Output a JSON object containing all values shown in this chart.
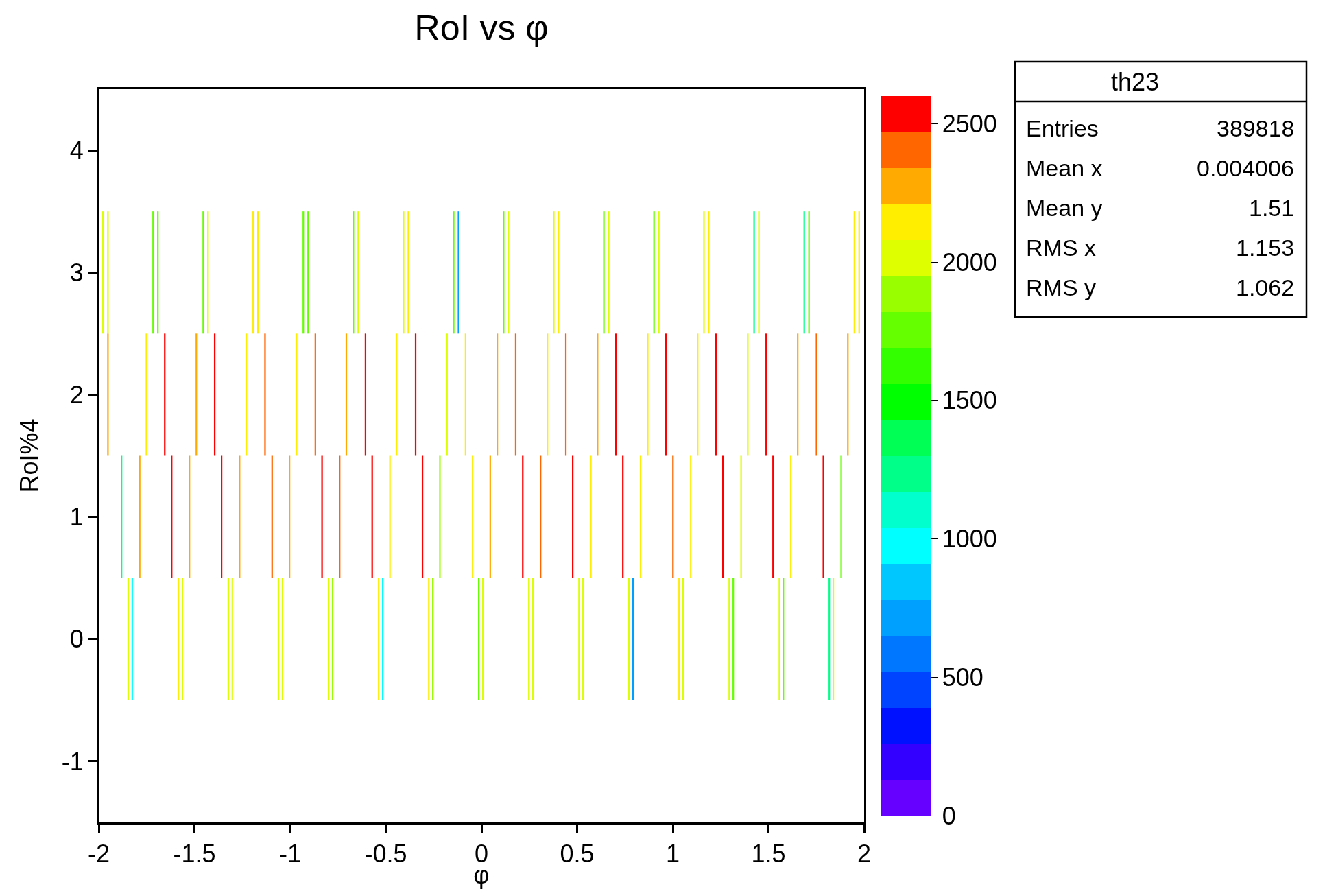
{
  "chart_data": {
    "type": "heatmap",
    "title": "RoI vs φ",
    "xlabel": "φ",
    "ylabel": "RoI%4",
    "x": [
      -1.986,
      -1.978,
      -1.97,
      -1.96,
      -1.952,
      -1.944,
      -1.889,
      -1.881,
      -1.873,
      -1.854,
      -1.846,
      -1.838,
      -1.833,
      -1.825,
      -1.817,
      -1.794,
      -1.786,
      -1.778,
      -1.759,
      -1.751,
      -1.743,
      -1.724,
      -1.716,
      -1.708,
      -1.699,
      -1.691,
      -1.683,
      -1.663,
      -1.655,
      -1.647,
      -1.627,
      -1.619,
      -1.611,
      -1.592,
      -1.584,
      -1.576,
      -1.571,
      -1.563,
      -1.555,
      -1.534,
      -1.526,
      -1.518,
      -1.498,
      -1.49,
      -1.482,
      -1.462,
      -1.454,
      -1.446,
      -1.437,
      -1.429,
      -1.421,
      -1.402,
      -1.394,
      -1.386,
      -1.366,
      -1.358,
      -1.35,
      -1.331,
      -1.323,
      -1.315,
      -1.31,
      -1.302,
      -1.294,
      -1.272,
      -1.264,
      -1.256,
      -1.236,
      -1.228,
      -1.22,
      -1.201,
      -1.193,
      -1.185,
      -1.176,
      -1.168,
      -1.16,
      -1.139,
      -1.131,
      -1.123,
      -1.102,
      -1.094,
      -1.086,
      -1.069,
      -1.061,
      -1.053,
      -1.048,
      -1.04,
      -1.032,
      -1.011,
      -1.003,
      -0.995,
      -0.974,
      -0.966,
      -0.958,
      -0.939,
      -0.931,
      -0.923,
      -0.914,
      -0.906,
      -0.898,
      -0.876,
      -0.868,
      -0.86,
      -0.841,
      -0.833,
      -0.825,
      -0.807,
      -0.799,
      -0.791,
      -0.786,
      -0.778,
      -0.77,
      -0.749,
      -0.741,
      -0.733,
      -0.714,
      -0.706,
      -0.698,
      -0.677,
      -0.669,
      -0.661,
      -0.652,
      -0.644,
      -0.636,
      -0.614,
      -0.606,
      -0.598,
      -0.579,
      -0.571,
      -0.563,
      -0.545,
      -0.537,
      -0.529,
      -0.524,
      -0.516,
      -0.508,
      -0.486,
      -0.478,
      -0.47,
      -0.451,
      -0.443,
      -0.435,
      -0.415,
      -0.407,
      -0.399,
      -0.39,
      -0.382,
      -0.374,
      -0.352,
      -0.344,
      -0.336,
      -0.316,
      -0.308,
      -0.3,
      -0.283,
      -0.275,
      -0.267,
      -0.262,
      -0.254,
      -0.246,
      -0.225,
      -0.217,
      -0.209,
      -0.188,
      -0.18,
      -0.172,
      -0.153,
      -0.145,
      -0.137,
      -0.128,
      -0.12,
      -0.112,
      -0.091,
      -0.083,
      -0.075,
      -0.054,
      -0.046,
      -0.038,
      -0.022,
      -0.014,
      -0.006,
      -0.001,
      0.007,
      0.015,
      0.038,
      0.046,
      0.054,
      0.075,
      0.083,
      0.091,
      0.108,
      0.116,
      0.124,
      0.133,
      0.141,
      0.149,
      0.171,
      0.179,
      0.187,
      0.208,
      0.216,
      0.224,
      0.24,
      0.248,
      0.256,
      0.261,
      0.269,
      0.277,
      0.301,
      0.309,
      0.317,
      0.337,
      0.345,
      0.353,
      0.37,
      0.378,
      0.386,
      0.395,
      0.403,
      0.411,
      0.433,
      0.441,
      0.449,
      0.469,
      0.477,
      0.485,
      0.502,
      0.51,
      0.518,
      0.523,
      0.531,
      0.539,
      0.564,
      0.572,
      0.58,
      0.599,
      0.607,
      0.615,
      0.632,
      0.64,
      0.648,
      0.657,
      0.665,
      0.673,
      0.695,
      0.703,
      0.711,
      0.731,
      0.739,
      0.747,
      0.763,
      0.771,
      0.779,
      0.784,
      0.792,
      0.8,
      0.824,
      0.832,
      0.84,
      0.861,
      0.869,
      0.877,
      0.894,
      0.902,
      0.91,
      0.919,
      0.927,
      0.935,
      0.956,
      0.964,
      0.972,
      0.993,
      1.001,
      1.009,
      1.025,
      1.033,
      1.041,
      1.046,
      1.054,
      1.062,
      1.086,
      1.094,
      1.102,
      1.122,
      1.13,
      1.138,
      1.155,
      1.163,
      1.171,
      1.18,
      1.188,
      1.196,
      1.218,
      1.226,
      1.234,
      1.254,
      1.262,
      1.27,
      1.287,
      1.295,
      1.303,
      1.308,
      1.316,
      1.324,
      1.349,
      1.357,
      1.365,
      1.384,
      1.392,
      1.4,
      1.417,
      1.425,
      1.433,
      1.442,
      1.45,
      1.458,
      1.48,
      1.488,
      1.496,
      1.516,
      1.524,
      1.532,
      1.549,
      1.557,
      1.565,
      1.57,
      1.578,
      1.586,
      1.609,
      1.617,
      1.625,
      1.645,
      1.653,
      1.661,
      1.679,
      1.687,
      1.695,
      1.704,
      1.712,
      1.72,
      1.743,
      1.751,
      1.759,
      1.779,
      1.787,
      1.795,
      1.81,
      1.818,
      1.826,
      1.831,
      1.839,
      1.847,
      1.872,
      1.88,
      1.888,
      1.907,
      1.915,
      1.923,
      1.941,
      1.949,
      1.957,
      1.966,
      1.974,
      1.982
    ],
    "y": [
      3,
      2,
      1,
      0
    ],
    "cells": [
      [
        null,
        2000,
        null,
        null,
        2000,
        null,
        null,
        null,
        null,
        null,
        null,
        null,
        null,
        null,
        null,
        null,
        null,
        null,
        null,
        null,
        null,
        null,
        1700,
        null,
        null,
        1700,
        null,
        null,
        null,
        null,
        null,
        null,
        null,
        null,
        null,
        null,
        null,
        null,
        null,
        null,
        null,
        null,
        null,
        null,
        null,
        null,
        1700,
        null,
        null,
        2000,
        null,
        null,
        null,
        null,
        null,
        null,
        null,
        null,
        null,
        null,
        null,
        null,
        null,
        null,
        null,
        null,
        null,
        null,
        null,
        null,
        2150,
        null,
        null,
        2150,
        null,
        null,
        null,
        null,
        null,
        null,
        null,
        null,
        null,
        null,
        null,
        null,
        null,
        null,
        null,
        null,
        null,
        null,
        null,
        null,
        1700,
        null,
        null,
        1700,
        null,
        null,
        null,
        null,
        null,
        null,
        null,
        null,
        null,
        null,
        null,
        null,
        null,
        null,
        null,
        null,
        null,
        null,
        null,
        null,
        1700,
        null,
        null,
        2000,
        null,
        null,
        null,
        null,
        null,
        null,
        null,
        null,
        null,
        null,
        null,
        null,
        null,
        null,
        null,
        null,
        null,
        null,
        null,
        null,
        2000,
        null,
        null,
        2150,
        null,
        null,
        null,
        null,
        null,
        null,
        null,
        null,
        null,
        null,
        null,
        null,
        null,
        null,
        null,
        null,
        null,
        null,
        null,
        null,
        1700,
        null,
        null,
        650,
        null,
        null,
        null,
        null,
        null,
        null,
        null,
        null,
        null,
        null,
        null,
        null,
        null,
        null,
        null,
        null,
        null,
        null,
        null,
        null,
        1700,
        null,
        null,
        2000,
        null,
        null,
        null,
        null,
        null,
        null,
        null,
        null,
        null,
        null,
        null,
        null,
        null,
        null,
        null,
        null,
        null,
        null,
        null,
        null,
        2000,
        null,
        null,
        2150,
        null,
        null,
        null,
        null,
        null,
        null,
        null,
        null,
        null,
        null,
        null,
        null,
        null,
        null,
        null,
        null,
        null,
        null,
        null,
        null,
        1700,
        null,
        null,
        2000,
        null,
        null,
        null,
        null,
        null,
        null,
        null,
        null,
        null,
        null,
        null,
        null,
        null,
        null,
        null,
        null,
        null,
        null,
        null,
        null,
        1700,
        null,
        null,
        2000,
        null,
        null,
        null,
        null,
        null,
        null,
        null,
        null,
        null,
        null,
        null,
        null,
        null,
        null,
        null,
        null,
        null,
        null,
        null,
        null,
        2000,
        null,
        null,
        2150,
        null,
        null,
        null,
        null,
        null,
        null,
        null,
        null,
        null,
        null,
        null,
        null,
        null,
        null,
        null,
        null,
        null,
        null,
        null,
        null,
        1200,
        null,
        null,
        2000,
        null,
        null,
        null,
        null,
        null,
        null,
        null,
        null,
        null,
        null,
        null,
        null,
        null,
        null,
        null,
        null,
        null,
        null,
        null,
        null,
        1200,
        null,
        null,
        1700,
        null,
        null,
        null,
        null,
        null,
        null,
        null,
        null,
        null,
        null,
        null,
        null,
        null,
        null,
        null,
        null,
        null,
        null,
        null,
        null,
        2150,
        null,
        null,
        2150,
        null
      ],
      [
        null,
        null,
        null,
        null,
        2300,
        null,
        null,
        null,
        null,
        null,
        null,
        null,
        null,
        null,
        null,
        null,
        null,
        null,
        null,
        2150,
        null,
        null,
        null,
        null,
        null,
        null,
        null,
        null,
        2550,
        null,
        null,
        null,
        null,
        null,
        null,
        null,
        null,
        null,
        null,
        null,
        null,
        null,
        null,
        2300,
        null,
        null,
        null,
        null,
        null,
        null,
        null,
        null,
        2550,
        null,
        null,
        null,
        null,
        null,
        null,
        null,
        null,
        null,
        null,
        null,
        null,
        null,
        null,
        2150,
        null,
        null,
        null,
        null,
        null,
        null,
        null,
        null,
        2400,
        null,
        null,
        null,
        null,
        null,
        null,
        null,
        null,
        null,
        null,
        null,
        null,
        null,
        null,
        2150,
        null,
        null,
        null,
        null,
        null,
        null,
        null,
        null,
        2400,
        null,
        null,
        null,
        null,
        null,
        null,
        null,
        null,
        null,
        null,
        null,
        null,
        null,
        null,
        2300,
        null,
        null,
        null,
        null,
        null,
        null,
        null,
        null,
        2550,
        null,
        null,
        null,
        null,
        null,
        null,
        null,
        null,
        null,
        null,
        null,
        null,
        null,
        null,
        2150,
        null,
        null,
        null,
        null,
        null,
        null,
        null,
        null,
        2550,
        null,
        null,
        null,
        null,
        null,
        null,
        null,
        null,
        null,
        null,
        null,
        null,
        null,
        null,
        2000,
        null,
        null,
        null,
        null,
        null,
        null,
        null,
        null,
        2150,
        null,
        null,
        null,
        null,
        null,
        null,
        null,
        null,
        null,
        null,
        null,
        null,
        null,
        null,
        2300,
        null,
        null,
        null,
        null,
        null,
        null,
        null,
        null,
        2400,
        null,
        null,
        null,
        null,
        null,
        null,
        null,
        null,
        null,
        null,
        null,
        null,
        null,
        null,
        2150,
        null,
        null,
        null,
        null,
        null,
        null,
        null,
        null,
        2400,
        null,
        null,
        null,
        null,
        null,
        null,
        null,
        null,
        null,
        null,
        null,
        null,
        null,
        null,
        2300,
        null,
        null,
        null,
        null,
        null,
        null,
        null,
        null,
        2550,
        null,
        null,
        null,
        null,
        null,
        null,
        null,
        null,
        null,
        null,
        null,
        null,
        null,
        null,
        2150,
        null,
        null,
        null,
        null,
        null,
        null,
        null,
        null,
        2550,
        null,
        null,
        null,
        null,
        null,
        null,
        null,
        null,
        null,
        null,
        null,
        null,
        null,
        null,
        2150,
        null,
        null,
        null,
        null,
        null,
        null,
        null,
        null,
        2550,
        null,
        null,
        null,
        null,
        null,
        null,
        null,
        null,
        null,
        null,
        null,
        null,
        null,
        null,
        2000,
        null,
        null,
        null,
        null,
        null,
        null,
        null,
        null,
        2550,
        null,
        null,
        null,
        null,
        null,
        null,
        null,
        null,
        null,
        null,
        null,
        null,
        null,
        null,
        2300,
        null,
        null,
        null,
        null,
        null,
        null,
        null,
        null,
        2400,
        null,
        null,
        null,
        null,
        null,
        null,
        null,
        null,
        null,
        null,
        null,
        null,
        null,
        null,
        2300,
        null,
        null,
        null,
        null,
        null,
        null,
        null
      ],
      [
        null,
        null,
        null,
        null,
        null,
        null,
        null,
        1200,
        null,
        null,
        null,
        null,
        null,
        null,
        null,
        null,
        2300,
        null,
        null,
        null,
        null,
        null,
        null,
        null,
        null,
        null,
        null,
        null,
        null,
        null,
        null,
        2550,
        null,
        null,
        null,
        null,
        null,
        null,
        null,
        null,
        2300,
        null,
        null,
        null,
        null,
        null,
        null,
        null,
        null,
        null,
        null,
        null,
        null,
        null,
        null,
        2550,
        null,
        null,
        null,
        null,
        null,
        null,
        null,
        null,
        2300,
        null,
        null,
        null,
        null,
        null,
        null,
        null,
        null,
        null,
        null,
        null,
        null,
        null,
        null,
        2400,
        null,
        null,
        null,
        null,
        null,
        null,
        null,
        null,
        2300,
        null,
        null,
        null,
        null,
        null,
        null,
        null,
        null,
        null,
        null,
        null,
        null,
        null,
        null,
        2550,
        null,
        null,
        null,
        null,
        null,
        null,
        null,
        null,
        2400,
        null,
        null,
        null,
        null,
        null,
        null,
        null,
        null,
        null,
        null,
        null,
        null,
        null,
        null,
        2550,
        null,
        null,
        null,
        null,
        null,
        null,
        null,
        null,
        2150,
        null,
        null,
        null,
        null,
        null,
        null,
        null,
        null,
        null,
        null,
        null,
        null,
        null,
        null,
        2550,
        null,
        null,
        null,
        null,
        null,
        null,
        null,
        null,
        1900,
        null,
        null,
        null,
        null,
        null,
        null,
        null,
        null,
        null,
        null,
        null,
        null,
        null,
        null,
        2150,
        null,
        null,
        null,
        null,
        null,
        null,
        null,
        null,
        2250,
        null,
        null,
        null,
        null,
        null,
        null,
        null,
        null,
        null,
        null,
        null,
        null,
        null,
        null,
        2550,
        null,
        null,
        null,
        null,
        null,
        null,
        null,
        null,
        2400,
        null,
        null,
        null,
        null,
        null,
        null,
        null,
        null,
        null,
        null,
        null,
        null,
        null,
        null,
        2550,
        null,
        null,
        null,
        null,
        null,
        null,
        null,
        null,
        2150,
        null,
        null,
        null,
        null,
        null,
        null,
        null,
        null,
        null,
        null,
        null,
        null,
        null,
        null,
        2550,
        null,
        null,
        null,
        null,
        null,
        null,
        null,
        null,
        2150,
        null,
        null,
        null,
        null,
        null,
        null,
        null,
        null,
        null,
        null,
        null,
        null,
        null,
        null,
        2400,
        null,
        null,
        null,
        null,
        null,
        null,
        null,
        null,
        2150,
        null,
        null,
        null,
        null,
        null,
        null,
        null,
        null,
        null,
        null,
        null,
        null,
        null,
        null,
        2550,
        null,
        null,
        null,
        null,
        null,
        null,
        null,
        null,
        2000,
        null,
        null,
        null,
        null,
        null,
        null,
        null,
        null,
        null,
        null,
        null,
        null,
        null,
        null,
        2550,
        null,
        null,
        null,
        null,
        null,
        null,
        null,
        null,
        2150,
        null,
        null,
        null,
        null,
        null,
        null,
        null,
        null,
        null,
        null,
        null,
        null,
        null,
        null,
        2550,
        null,
        null,
        null,
        null,
        null,
        null,
        null,
        null,
        1700,
        null,
        null,
        null,
        null,
        null,
        null,
        null,
        null,
        null,
        null
      ],
      [
        null,
        null,
        null,
        null,
        null,
        null,
        null,
        null,
        null,
        null,
        2000,
        null,
        null,
        950,
        null,
        null,
        null,
        null,
        null,
        null,
        null,
        null,
        null,
        null,
        null,
        null,
        null,
        null,
        null,
        null,
        null,
        null,
        null,
        null,
        2150,
        null,
        null,
        2000,
        null,
        null,
        null,
        null,
        null,
        null,
        null,
        null,
        null,
        null,
        null,
        null,
        null,
        null,
        null,
        null,
        null,
        null,
        null,
        null,
        2000,
        null,
        null,
        2000,
        null,
        null,
        null,
        null,
        null,
        null,
        null,
        null,
        null,
        null,
        null,
        null,
        null,
        null,
        null,
        null,
        null,
        null,
        null,
        null,
        2000,
        null,
        null,
        2000,
        null,
        null,
        null,
        null,
        null,
        null,
        null,
        null,
        null,
        null,
        null,
        null,
        null,
        null,
        null,
        null,
        null,
        null,
        null,
        null,
        2000,
        null,
        null,
        1900,
        null,
        null,
        null,
        null,
        null,
        null,
        null,
        null,
        null,
        null,
        null,
        null,
        null,
        null,
        null,
        null,
        null,
        null,
        null,
        null,
        2150,
        null,
        null,
        950,
        null,
        null,
        null,
        null,
        null,
        null,
        null,
        null,
        null,
        null,
        null,
        null,
        null,
        null,
        null,
        null,
        null,
        null,
        null,
        null,
        2150,
        null,
        null,
        1900,
        null,
        null,
        null,
        null,
        null,
        null,
        null,
        null,
        null,
        null,
        null,
        null,
        null,
        null,
        null,
        null,
        null,
        null,
        null,
        null,
        1700,
        null,
        null,
        2000,
        null,
        null,
        null,
        null,
        null,
        null,
        null,
        null,
        null,
        null,
        null,
        null,
        null,
        null,
        null,
        null,
        null,
        null,
        null,
        null,
        2000,
        null,
        null,
        2000,
        null,
        null,
        null,
        null,
        null,
        null,
        null,
        null,
        null,
        null,
        null,
        null,
        null,
        null,
        null,
        null,
        null,
        null,
        null,
        null,
        2000,
        null,
        null,
        2000,
        null,
        null,
        null,
        null,
        null,
        null,
        null,
        null,
        null,
        null,
        null,
        null,
        null,
        null,
        null,
        null,
        null,
        null,
        null,
        null,
        2000,
        null,
        null,
        650,
        null,
        null,
        null,
        null,
        null,
        null,
        null,
        null,
        null,
        null,
        null,
        null,
        null,
        null,
        null,
        null,
        null,
        null,
        null,
        null,
        2150,
        null,
        null,
        2000,
        null,
        null,
        null,
        null,
        null,
        null,
        null,
        null,
        null,
        null,
        null,
        null,
        null,
        null,
        null,
        null,
        null,
        null,
        null,
        null,
        2000,
        null,
        null,
        1700,
        null,
        null,
        null,
        null,
        null,
        null,
        null,
        null,
        null,
        null,
        null,
        null,
        null,
        null,
        null,
        null,
        null,
        null,
        null,
        null,
        2000,
        null,
        null,
        1700,
        null,
        null,
        null,
        null,
        null,
        null,
        null,
        null,
        null,
        null,
        null,
        null,
        null,
        null,
        null,
        null,
        null,
        null,
        null,
        null,
        1200,
        null,
        null,
        2000,
        null,
        null,
        null,
        null,
        null,
        null,
        null,
        null,
        null,
        null,
        null,
        null,
        null
      ]
    ],
    "xlim": [
      -2,
      2
    ],
    "xticks": [
      -2,
      -1.5,
      -1,
      -0.5,
      0,
      0.5,
      1,
      1.5,
      2
    ],
    "ylim": [
      -1.5,
      4.5
    ],
    "yticks": [
      -1,
      0,
      1,
      2,
      3,
      4
    ],
    "clim": [
      0,
      2600
    ],
    "cticks": [
      0,
      500,
      1000,
      1500,
      2000,
      2500
    ],
    "annotations": [
      "th23",
      "Entries",
      "389818",
      "Mean x",
      "0.004006",
      "Mean y",
      "1.51",
      "RMS x",
      "1.153",
      "RMS y",
      "1.062"
    ]
  }
}
